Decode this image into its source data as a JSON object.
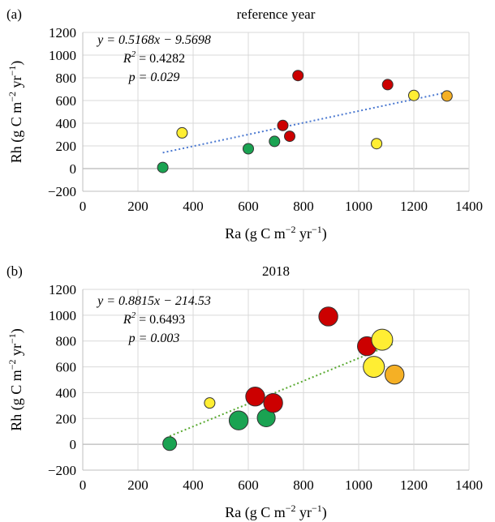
{
  "chart_data": [
    {
      "type": "scatter",
      "panel_label": "(a)",
      "title": "reference year",
      "xlabel": "Ra (g C m",
      "ylabel": "Rh (g C m",
      "unit_sup": "−2",
      "unit_mid": " yr",
      "unit_sup2": "−1",
      "unit_end": ")",
      "xlim": [
        0,
        1400
      ],
      "ylim": [
        -200,
        1200
      ],
      "xticks": [
        "0",
        "200",
        "400",
        "600",
        "800",
        "1000",
        "1200",
        "1400"
      ],
      "yticks": [
        "−200",
        "0",
        "200",
        "400",
        "600",
        "800",
        "1000",
        "1200"
      ],
      "grid": true,
      "equation": "y = 0.5168x − 9.5698",
      "r2": "R² = 0.4282",
      "r2_prefix": "R",
      "r2_sup": "2",
      "r2_value": " = 0.4282",
      "p": "p = 0.029",
      "trendline": {
        "slope": 0.5168,
        "intercept": -9.5698,
        "x_range": [
          290,
          1320
        ],
        "color": "#4a78d0"
      },
      "points": [
        {
          "x": 290,
          "y": 10,
          "size": 1,
          "color": "#1aa352"
        },
        {
          "x": 360,
          "y": 315,
          "size": 1,
          "color": "#ffee33"
        },
        {
          "x": 600,
          "y": 175,
          "size": 1,
          "color": "#1aa352"
        },
        {
          "x": 695,
          "y": 240,
          "size": 1,
          "color": "#1aa352"
        },
        {
          "x": 725,
          "y": 380,
          "size": 1,
          "color": "#cc0000"
        },
        {
          "x": 750,
          "y": 285,
          "size": 1,
          "color": "#cc0000"
        },
        {
          "x": 780,
          "y": 820,
          "size": 1,
          "color": "#cc0000"
        },
        {
          "x": 1065,
          "y": 220,
          "size": 1,
          "color": "#ffee33"
        },
        {
          "x": 1105,
          "y": 740,
          "size": 1,
          "color": "#cc0000"
        },
        {
          "x": 1200,
          "y": 645,
          "size": 1,
          "color": "#ffee33"
        },
        {
          "x": 1320,
          "y": 640,
          "size": 1,
          "color": "#f5b025"
        }
      ]
    },
    {
      "type": "scatter",
      "panel_label": "(b)",
      "title": "2018",
      "xlabel": "Ra (g C m",
      "ylabel": "Rh (g C m",
      "unit_sup": "−2",
      "unit_mid": " yr",
      "unit_sup2": "−1",
      "unit_end": ")",
      "xlim": [
        0,
        1400
      ],
      "ylim": [
        -200,
        1200
      ],
      "xticks": [
        "0",
        "200",
        "400",
        "600",
        "800",
        "1000",
        "1200",
        "1400"
      ],
      "yticks": [
        "−200",
        "0",
        "200",
        "400",
        "600",
        "800",
        "1000",
        "1200"
      ],
      "grid": true,
      "equation": "y = 0.8815x − 214.53",
      "r2": "R² = 0.6493",
      "r2_prefix": "R",
      "r2_sup": "2",
      "r2_value": " = 0.6493",
      "p": "p = 0.003",
      "trendline": {
        "slope": 0.8815,
        "intercept": -214.53,
        "x_range": [
          315,
          1130
        ],
        "color": "#5aaa32"
      },
      "points": [
        {
          "x": 315,
          "y": 5,
          "size": 1.3,
          "color": "#1aa352"
        },
        {
          "x": 460,
          "y": 320,
          "size": 1,
          "color": "#ffee33"
        },
        {
          "x": 565,
          "y": 185,
          "size": 1.8,
          "color": "#1aa352"
        },
        {
          "x": 625,
          "y": 370,
          "size": 1.8,
          "color": "#cc0000"
        },
        {
          "x": 665,
          "y": 205,
          "size": 1.7,
          "color": "#1aa352"
        },
        {
          "x": 690,
          "y": 320,
          "size": 1.8,
          "color": "#cc0000"
        },
        {
          "x": 890,
          "y": 990,
          "size": 1.8,
          "color": "#cc0000"
        },
        {
          "x": 1030,
          "y": 760,
          "size": 1.8,
          "color": "#cc0000"
        },
        {
          "x": 1055,
          "y": 600,
          "size": 2.0,
          "color": "#ffee33"
        },
        {
          "x": 1085,
          "y": 810,
          "size": 2.0,
          "color": "#ffee33"
        },
        {
          "x": 1130,
          "y": 540,
          "size": 1.8,
          "color": "#f5b025"
        }
      ]
    }
  ]
}
